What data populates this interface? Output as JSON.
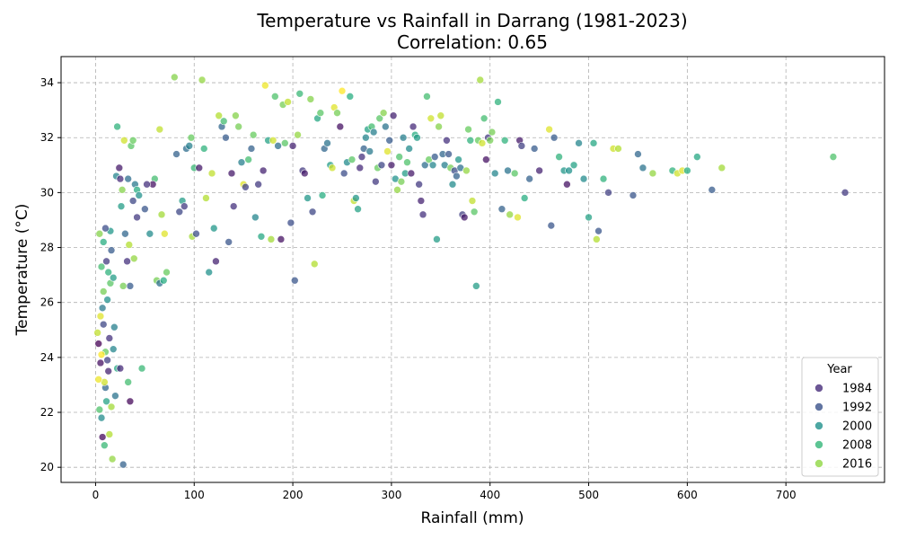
{
  "chart_data": {
    "type": "scatter",
    "title": "Temperature vs Rainfall in Darrang (1981-2023)",
    "subtitle": "Correlation: 0.65",
    "xlabel": "Rainfall (mm)",
    "ylabel": "Temperature (°C)",
    "xlim": [
      -35,
      800
    ],
    "ylim": [
      19.45,
      34.95
    ],
    "xticks": [
      0,
      100,
      200,
      300,
      400,
      500,
      600,
      700
    ],
    "yticks": [
      20,
      22,
      24,
      26,
      28,
      30,
      32,
      34
    ],
    "grid": true,
    "legend": {
      "title": "Year",
      "placement": "lower-right",
      "entries": [
        {
          "label": "1984",
          "color": "#472d7b"
        },
        {
          "label": "1992",
          "color": "#3b528b"
        },
        {
          "label": "2000",
          "color": "#21918c"
        },
        {
          "label": "2008",
          "color": "#35b779"
        },
        {
          "label": "2016",
          "color": "#90d743"
        }
      ]
    },
    "color_scale": {
      "year_min": 1981,
      "year_max": 2023,
      "stops": [
        "#440154",
        "#472d7b",
        "#3b528b",
        "#2c728e",
        "#21918c",
        "#28ae80",
        "#5ec962",
        "#addc30",
        "#fde725"
      ]
    },
    "points": [
      [
        3,
        24.5,
        1981
      ],
      [
        5,
        23.8,
        1983
      ],
      [
        8,
        25.2,
        1990
      ],
      [
        10,
        22.9,
        1995
      ],
      [
        12,
        26.1,
        2002
      ],
      [
        6,
        27.3,
        2010
      ],
      [
        4,
        28.5,
        2015
      ],
      [
        9,
        23.1,
        2020
      ],
      [
        14,
        24.7,
        1987
      ],
      [
        7,
        25.8,
        1998
      ],
      [
        11,
        22.4,
        2005
      ],
      [
        15,
        26.7,
        2012
      ],
      [
        2,
        24.9,
        2019
      ],
      [
        13,
        23.5,
        1985
      ],
      [
        16,
        27.9,
        1993
      ],
      [
        6,
        21.8,
        2001
      ],
      [
        8,
        28.2,
        2007
      ],
      [
        10,
        24.2,
        2013
      ],
      [
        5,
        25.5,
        2021
      ],
      [
        12,
        23.9,
        1989
      ],
      [
        20,
        22.6,
        1997
      ],
      [
        18,
        26.9,
        2004
      ],
      [
        7,
        21.1,
        1982
      ],
      [
        9,
        20.8,
        2009
      ],
      [
        14,
        21.2,
        2018
      ],
      [
        17,
        20.3,
        2016
      ],
      [
        28,
        20.1,
        1994
      ],
      [
        4,
        22.1,
        2011
      ],
      [
        3,
        23.2,
        2022
      ],
      [
        19,
        25.1,
        1999
      ],
      [
        22,
        23.6,
        2006
      ],
      [
        11,
        27.5,
        1988
      ],
      [
        8,
        26.4,
        2014
      ],
      [
        6,
        24.1,
        2023
      ],
      [
        15,
        28.6,
        2003
      ],
      [
        25,
        23.6,
        1986
      ],
      [
        16,
        22.2,
        2017
      ],
      [
        13,
        27.1,
        2008
      ],
      [
        18,
        24.3,
        2000
      ],
      [
        10,
        28.7,
        1991
      ],
      [
        21,
        30.6,
        2000
      ],
      [
        24,
        30.9,
        1984
      ],
      [
        25,
        30.5,
        1986
      ],
      [
        22,
        32.4,
        2008
      ],
      [
        27,
        30.1,
        2015
      ],
      [
        29,
        31.9,
        2020
      ],
      [
        33,
        30.5,
        1996
      ],
      [
        36,
        31.7,
        2012
      ],
      [
        38,
        31.9,
        2013
      ],
      [
        40,
        30.3,
        1998
      ],
      [
        42,
        30.1,
        2007
      ],
      [
        38,
        29.7,
        1990
      ],
      [
        42,
        29.1,
        1988
      ],
      [
        44,
        29.9,
        2002
      ],
      [
        47,
        23.6,
        2009
      ],
      [
        35,
        22.4,
        1982
      ],
      [
        33,
        23.1,
        2010
      ],
      [
        35,
        26.6,
        1993
      ],
      [
        28,
        26.6,
        2014
      ],
      [
        32,
        27.5,
        1987
      ],
      [
        39,
        27.6,
        2016
      ],
      [
        34,
        28.1,
        2018
      ],
      [
        30,
        28.5,
        1995
      ],
      [
        26,
        29.5,
        2004
      ],
      [
        50,
        29.4,
        1992
      ],
      [
        55,
        28.5,
        2001
      ],
      [
        60,
        30.5,
        2010
      ],
      [
        58,
        30.3,
        1983
      ],
      [
        52,
        30.3,
        1987
      ],
      [
        65,
        32.3,
        2019
      ],
      [
        62,
        26.8,
        2014
      ],
      [
        65,
        26.7,
        1996
      ],
      [
        67,
        29.2,
        2017
      ],
      [
        70,
        28.5,
        2021
      ],
      [
        72,
        27.1,
        2013
      ],
      [
        69,
        26.8,
        2007
      ],
      [
        80,
        34.2,
        2015
      ],
      [
        82,
        31.4,
        1994
      ],
      [
        85,
        29.3,
        1990
      ],
      [
        88,
        29.7,
        2004
      ],
      [
        90,
        29.5,
        1988
      ],
      [
        92,
        31.6,
        1996
      ],
      [
        95,
        31.7,
        1999
      ],
      [
        97,
        32.0,
        2013
      ],
      [
        100,
        30.9,
        2009
      ],
      [
        98,
        28.4,
        2017
      ],
      [
        102,
        28.5,
        1991
      ],
      [
        105,
        30.9,
        1984
      ],
      [
        108,
        34.1,
        2016
      ],
      [
        110,
        31.6,
        2008
      ],
      [
        112,
        29.8,
        2018
      ],
      [
        115,
        27.1,
        2002
      ],
      [
        118,
        30.7,
        2019
      ],
      [
        120,
        28.7,
        2003
      ],
      [
        122,
        27.5,
        1985
      ],
      [
        125,
        32.8,
        2018
      ],
      [
        128,
        32.4,
        1995
      ],
      [
        130,
        32.6,
        2010
      ],
      [
        132,
        32.0,
        1993
      ],
      [
        135,
        28.2,
        1992
      ],
      [
        138,
        30.7,
        1984
      ],
      [
        140,
        29.5,
        1987
      ],
      [
        142,
        32.8,
        2015
      ],
      [
        145,
        32.4,
        2014
      ],
      [
        148,
        31.1,
        1999
      ],
      [
        150,
        30.3,
        2021
      ],
      [
        152,
        30.2,
        1989
      ],
      [
        155,
        31.2,
        2010
      ],
      [
        158,
        31.6,
        1994
      ],
      [
        160,
        32.1,
        2013
      ],
      [
        162,
        29.1,
        2000
      ],
      [
        165,
        30.3,
        1988
      ],
      [
        168,
        28.4,
        2006
      ],
      [
        170,
        30.8,
        1985
      ],
      [
        172,
        33.9,
        2022
      ],
      [
        175,
        31.9,
        2005
      ],
      [
        178,
        28.3,
        2017
      ],
      [
        180,
        31.9,
        2020
      ],
      [
        182,
        33.5,
        2011
      ],
      [
        185,
        31.7,
        1996
      ],
      [
        188,
        28.3,
        1983
      ],
      [
        190,
        33.2,
        2014
      ],
      [
        192,
        31.8,
        2012
      ],
      [
        195,
        33.3,
        2019
      ],
      [
        198,
        28.9,
        1991
      ],
      [
        200,
        31.7,
        1985
      ],
      [
        202,
        26.8,
        1992
      ],
      [
        205,
        32.1,
        2016
      ],
      [
        207,
        33.6,
        2009
      ],
      [
        210,
        30.8,
        1988
      ],
      [
        212,
        30.7,
        1984
      ],
      [
        215,
        29.8,
        2003
      ],
      [
        218,
        33.4,
        2015
      ],
      [
        220,
        29.3,
        1990
      ],
      [
        222,
        27.4,
        2018
      ],
      [
        225,
        32.7,
        2006
      ],
      [
        228,
        32.9,
        2012
      ],
      [
        230,
        29.9,
        2007
      ],
      [
        232,
        31.6,
        1995
      ],
      [
        235,
        31.8,
        1997
      ],
      [
        238,
        31.0,
        2004
      ],
      [
        240,
        30.9,
        2020
      ],
      [
        242,
        33.1,
        2021
      ],
      [
        245,
        32.9,
        2014
      ],
      [
        248,
        32.4,
        1983
      ],
      [
        250,
        33.7,
        2023
      ],
      [
        252,
        30.7,
        1991
      ],
      [
        255,
        31.1,
        2001
      ],
      [
        258,
        33.5,
        2007
      ],
      [
        260,
        31.2,
        2012
      ],
      [
        262,
        29.7,
        2019
      ],
      [
        264,
        29.8,
        2003
      ],
      [
        266,
        29.4,
        2005
      ],
      [
        268,
        30.9,
        1986
      ],
      [
        270,
        31.3,
        1987
      ],
      [
        272,
        31.6,
        1994
      ],
      [
        274,
        32.0,
        2000
      ],
      [
        276,
        32.3,
        2005
      ],
      [
        278,
        31.5,
        1998
      ],
      [
        280,
        32.4,
        2010
      ],
      [
        282,
        32.2,
        1999
      ],
      [
        284,
        30.4,
        1988
      ],
      [
        286,
        30.9,
        2013
      ],
      [
        288,
        32.7,
        2012
      ],
      [
        290,
        31.0,
        1990
      ],
      [
        292,
        32.9,
        2015
      ],
      [
        294,
        32.4,
        1997
      ],
      [
        296,
        31.5,
        2021
      ],
      [
        298,
        31.9,
        1993
      ],
      [
        300,
        31.0,
        1984
      ],
      [
        302,
        32.8,
        1985
      ],
      [
        304,
        30.5,
        2002
      ],
      [
        306,
        30.1,
        2016
      ],
      [
        308,
        31.3,
        2011
      ],
      [
        310,
        30.4,
        2014
      ],
      [
        312,
        32.0,
        1999
      ],
      [
        314,
        30.7,
        2004
      ],
      [
        316,
        31.1,
        2011
      ],
      [
        318,
        31.6,
        2001
      ],
      [
        320,
        30.7,
        1984
      ],
      [
        322,
        32.4,
        1986
      ],
      [
        324,
        32.1,
        2007
      ],
      [
        326,
        32.0,
        2004
      ],
      [
        328,
        30.3,
        1988
      ],
      [
        330,
        29.7,
        1985
      ],
      [
        332,
        29.2,
        1987
      ],
      [
        334,
        31.0,
        1996
      ],
      [
        336,
        33.5,
        2010
      ],
      [
        338,
        31.2,
        2013
      ],
      [
        340,
        32.7,
        2020
      ],
      [
        342,
        31.0,
        2000
      ],
      [
        344,
        31.3,
        1993
      ],
      [
        346,
        28.3,
        2004
      ],
      [
        348,
        32.4,
        2015
      ],
      [
        350,
        32.8,
        2019
      ],
      [
        352,
        31.4,
        1995
      ],
      [
        354,
        31.0,
        1999
      ],
      [
        356,
        31.9,
        1987
      ],
      [
        358,
        31.4,
        1992
      ],
      [
        360,
        30.9,
        2014
      ],
      [
        362,
        30.3,
        2001
      ],
      [
        364,
        30.8,
        1991
      ],
      [
        366,
        30.6,
        1994
      ],
      [
        368,
        31.2,
        2003
      ],
      [
        370,
        30.9,
        1996
      ],
      [
        372,
        29.2,
        1989
      ],
      [
        374,
        29.1,
        1984
      ],
      [
        376,
        30.8,
        2016
      ],
      [
        378,
        32.3,
        2013
      ],
      [
        380,
        31.9,
        2008
      ],
      [
        382,
        29.7,
        2019
      ],
      [
        384,
        29.3,
        2012
      ],
      [
        386,
        26.6,
        2004
      ],
      [
        388,
        31.9,
        2013
      ],
      [
        390,
        34.1,
        2017
      ],
      [
        392,
        31.8,
        2020
      ],
      [
        394,
        32.7,
        2010
      ],
      [
        396,
        31.2,
        1983
      ],
      [
        398,
        32.0,
        1988
      ],
      [
        400,
        31.9,
        2014
      ],
      [
        402,
        32.2,
        2014
      ],
      [
        405,
        30.7,
        2000
      ],
      [
        408,
        33.3,
        2008
      ],
      [
        412,
        29.4,
        1994
      ],
      [
        415,
        31.9,
        2008
      ],
      [
        418,
        30.8,
        1997
      ],
      [
        420,
        29.2,
        2016
      ],
      [
        425,
        30.7,
        2012
      ],
      [
        428,
        29.1,
        2021
      ],
      [
        430,
        31.9,
        1984
      ],
      [
        432,
        31.7,
        1989
      ],
      [
        435,
        29.8,
        2007
      ],
      [
        440,
        30.5,
        1994
      ],
      [
        445,
        31.6,
        1993
      ],
      [
        450,
        30.8,
        1985
      ],
      [
        460,
        32.3,
        2021
      ],
      [
        462,
        28.8,
        1992
      ],
      [
        465,
        32.0,
        1993
      ],
      [
        470,
        31.3,
        2008
      ],
      [
        475,
        30.8,
        2003
      ],
      [
        478,
        30.3,
        1983
      ],
      [
        480,
        30.8,
        2002
      ],
      [
        485,
        31.0,
        2005
      ],
      [
        490,
        31.8,
        2000
      ],
      [
        495,
        30.5,
        2001
      ],
      [
        500,
        29.1,
        2005
      ],
      [
        505,
        31.8,
        2006
      ],
      [
        508,
        28.3,
        2018
      ],
      [
        510,
        28.6,
        1992
      ],
      [
        515,
        30.5,
        2008
      ],
      [
        520,
        30.0,
        1989
      ],
      [
        525,
        31.6,
        2020
      ],
      [
        530,
        31.6,
        2018
      ],
      [
        545,
        29.9,
        1992
      ],
      [
        550,
        31.4,
        1995
      ],
      [
        555,
        30.9,
        1997
      ],
      [
        565,
        30.7,
        2016
      ],
      [
        585,
        30.8,
        2008
      ],
      [
        590,
        30.7,
        2020
      ],
      [
        595,
        30.8,
        2021
      ],
      [
        600,
        30.8,
        2007
      ],
      [
        610,
        31.3,
        2006
      ],
      [
        625,
        30.1,
        1993
      ],
      [
        635,
        30.9,
        2017
      ],
      [
        748,
        31.3,
        2011
      ],
      [
        760,
        30.0,
        1988
      ]
    ]
  }
}
